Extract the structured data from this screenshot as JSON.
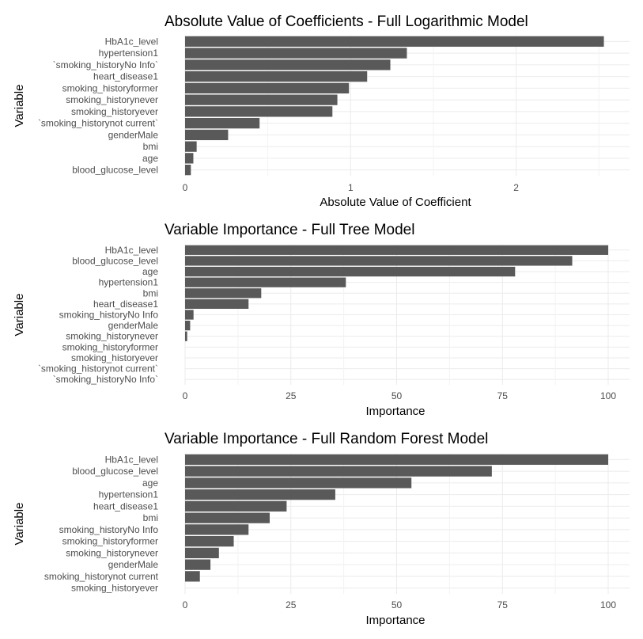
{
  "chart_data": [
    {
      "type": "bar",
      "orientation": "horizontal",
      "title": "Absolute Value of Coefficients - Full Logarithmic Model",
      "xlabel": "Absolute Value of Coefficient",
      "ylabel": "Variable",
      "xlim": [
        0,
        2.6
      ],
      "xticks": [
        0,
        1,
        2
      ],
      "xtick_labels": [
        "0",
        "1",
        "2"
      ],
      "categories": [
        "HbA1c_level",
        "hypertension1",
        "`smoking_historyNo Info`",
        "heart_disease1",
        "smoking_historyformer",
        "smoking_historynever",
        "smoking_historyever",
        "`smoking_historynot current`",
        "genderMale",
        "bmi",
        "age",
        "blood_glucose_level"
      ],
      "values": [
        2.53,
        1.34,
        1.24,
        1.1,
        0.99,
        0.92,
        0.89,
        0.45,
        0.26,
        0.07,
        0.05,
        0.035
      ],
      "bar_color": "#595959",
      "grid": true
    },
    {
      "type": "bar",
      "orientation": "horizontal",
      "title": "Variable Importance - Full Tree Model",
      "xlabel": "Importance",
      "ylabel": "Variable",
      "xlim": [
        0,
        104
      ],
      "xticks": [
        0,
        25,
        50,
        75,
        100
      ],
      "xtick_labels": [
        "0",
        "25",
        "50",
        "75",
        "100"
      ],
      "categories": [
        "HbA1c_level",
        "blood_glucose_level",
        "age",
        "hypertension1",
        "bmi",
        "heart_disease1",
        "smoking_historyNo Info",
        "genderMale",
        "smoking_historynever",
        "smoking_historyformer",
        "smoking_historyever",
        "`smoking_historynot current`",
        "`smoking_historyNo Info`"
      ],
      "values": [
        100,
        91.5,
        78,
        38,
        18,
        15,
        2,
        1.2,
        0.5,
        0,
        0,
        0,
        0
      ],
      "bar_color": "#595959",
      "grid": true
    },
    {
      "type": "bar",
      "orientation": "horizontal",
      "title": "Variable Importance - Full Random Forest Model",
      "xlabel": "Importance",
      "ylabel": "Variable",
      "xlim": [
        0,
        104
      ],
      "xticks": [
        0,
        25,
        50,
        75,
        100
      ],
      "xtick_labels": [
        "0",
        "25",
        "50",
        "75",
        "100"
      ],
      "categories": [
        "HbA1c_level",
        "blood_glucose_level",
        "age",
        "hypertension1",
        "heart_disease1",
        "bmi",
        "smoking_historyNo Info",
        "smoking_historyformer",
        "smoking_historynever",
        "genderMale",
        "smoking_historynot current",
        "smoking_historyever"
      ],
      "values": [
        100,
        72.5,
        53.5,
        35.5,
        24,
        20,
        15,
        11.5,
        8,
        6,
        3.5,
        0
      ],
      "bar_color": "#595959",
      "grid": true
    }
  ]
}
